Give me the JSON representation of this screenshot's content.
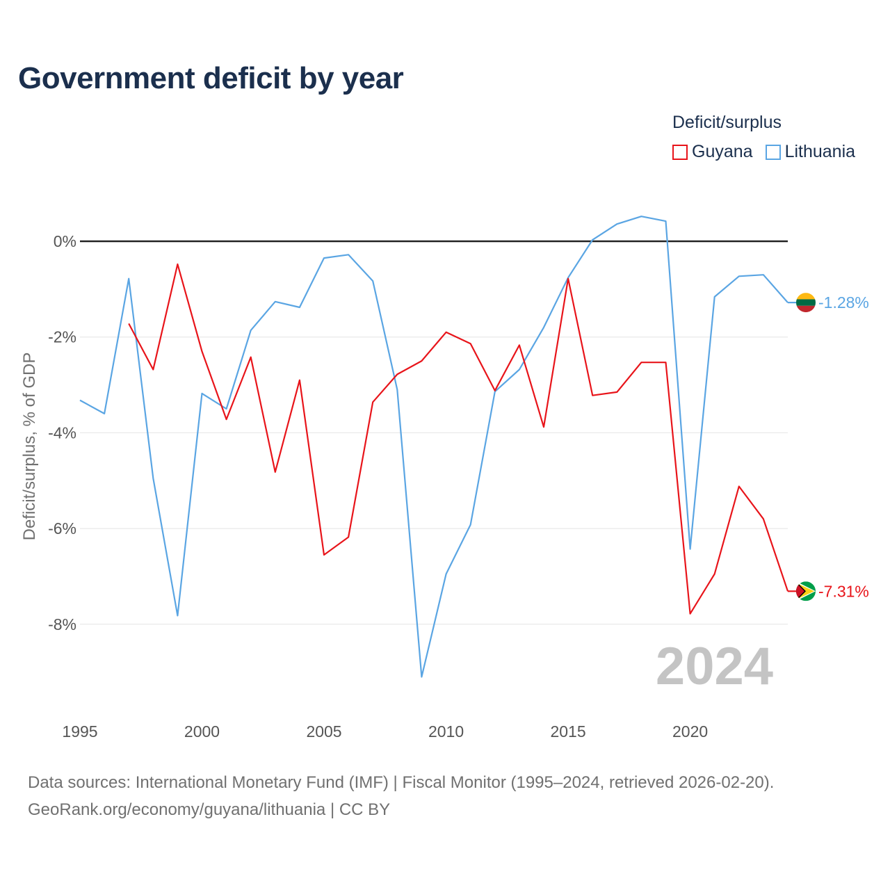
{
  "title": "Government deficit by year",
  "legend": {
    "title": "Deficit/surplus",
    "items": [
      {
        "label": "Guyana",
        "color": "#e8141a"
      },
      {
        "label": "Lithuania",
        "color": "#5aa5e3"
      }
    ]
  },
  "watermark_year": "2024",
  "footer": {
    "line1": "Data sources: International Monetary Fund (IMF) | Fiscal Monitor (1995–2024, retrieved 2026-02-20).",
    "line2": "GeoRank.org/economy/guyana/lithuania | CC BY"
  },
  "chart_data": {
    "type": "line",
    "title": "Government deficit by year",
    "xlabel": "",
    "ylabel": "Deficit/surplus, % of GDP",
    "xlim": [
      1995,
      2024
    ],
    "ylim": [
      -9.3,
      1.0
    ],
    "x_ticks": [
      1995,
      2000,
      2005,
      2010,
      2015,
      2020
    ],
    "y_ticks": [
      0,
      -2,
      -4,
      -6,
      -8
    ],
    "y_tick_labels": [
      "0%",
      "-2%",
      "-4%",
      "-6%",
      "-8%"
    ],
    "series": [
      {
        "name": "Lithuania",
        "color": "#5aa5e3",
        "end_label": "-1.28%",
        "x": [
          1995,
          1996,
          1997,
          1998,
          1999,
          2000,
          2001,
          2002,
          2003,
          2004,
          2005,
          2006,
          2007,
          2008,
          2009,
          2010,
          2011,
          2012,
          2013,
          2014,
          2015,
          2016,
          2017,
          2018,
          2019,
          2020,
          2021,
          2022,
          2023,
          2024
        ],
        "values": [
          -3.32,
          -3.6,
          -0.78,
          -4.95,
          -7.82,
          -3.18,
          -3.5,
          -1.86,
          -1.26,
          -1.38,
          -0.35,
          -0.28,
          -0.83,
          -3.1,
          -9.1,
          -6.95,
          -5.92,
          -3.14,
          -2.68,
          -1.8,
          -0.76,
          0.03,
          0.36,
          0.52,
          0.42,
          -6.43,
          -1.16,
          -0.73,
          -0.7,
          -1.28
        ]
      },
      {
        "name": "Guyana",
        "color": "#e8141a",
        "end_label": "-7.31%",
        "x": [
          1997,
          1998,
          1999,
          2000,
          2001,
          2002,
          2003,
          2004,
          2005,
          2006,
          2007,
          2008,
          2009,
          2010,
          2011,
          2012,
          2013,
          2014,
          2015,
          2016,
          2017,
          2018,
          2019,
          2020,
          2021,
          2022,
          2023,
          2024
        ],
        "values": [
          -1.72,
          -2.68,
          -0.48,
          -2.3,
          -3.72,
          -2.42,
          -4.82,
          -2.9,
          -6.55,
          -6.18,
          -3.36,
          -2.78,
          -2.5,
          -1.9,
          -2.14,
          -3.12,
          -2.17,
          -3.88,
          -0.78,
          -3.22,
          -3.15,
          -2.53,
          -2.53,
          -7.78,
          -6.95,
          -5.12,
          -5.8,
          -7.31
        ]
      }
    ]
  }
}
